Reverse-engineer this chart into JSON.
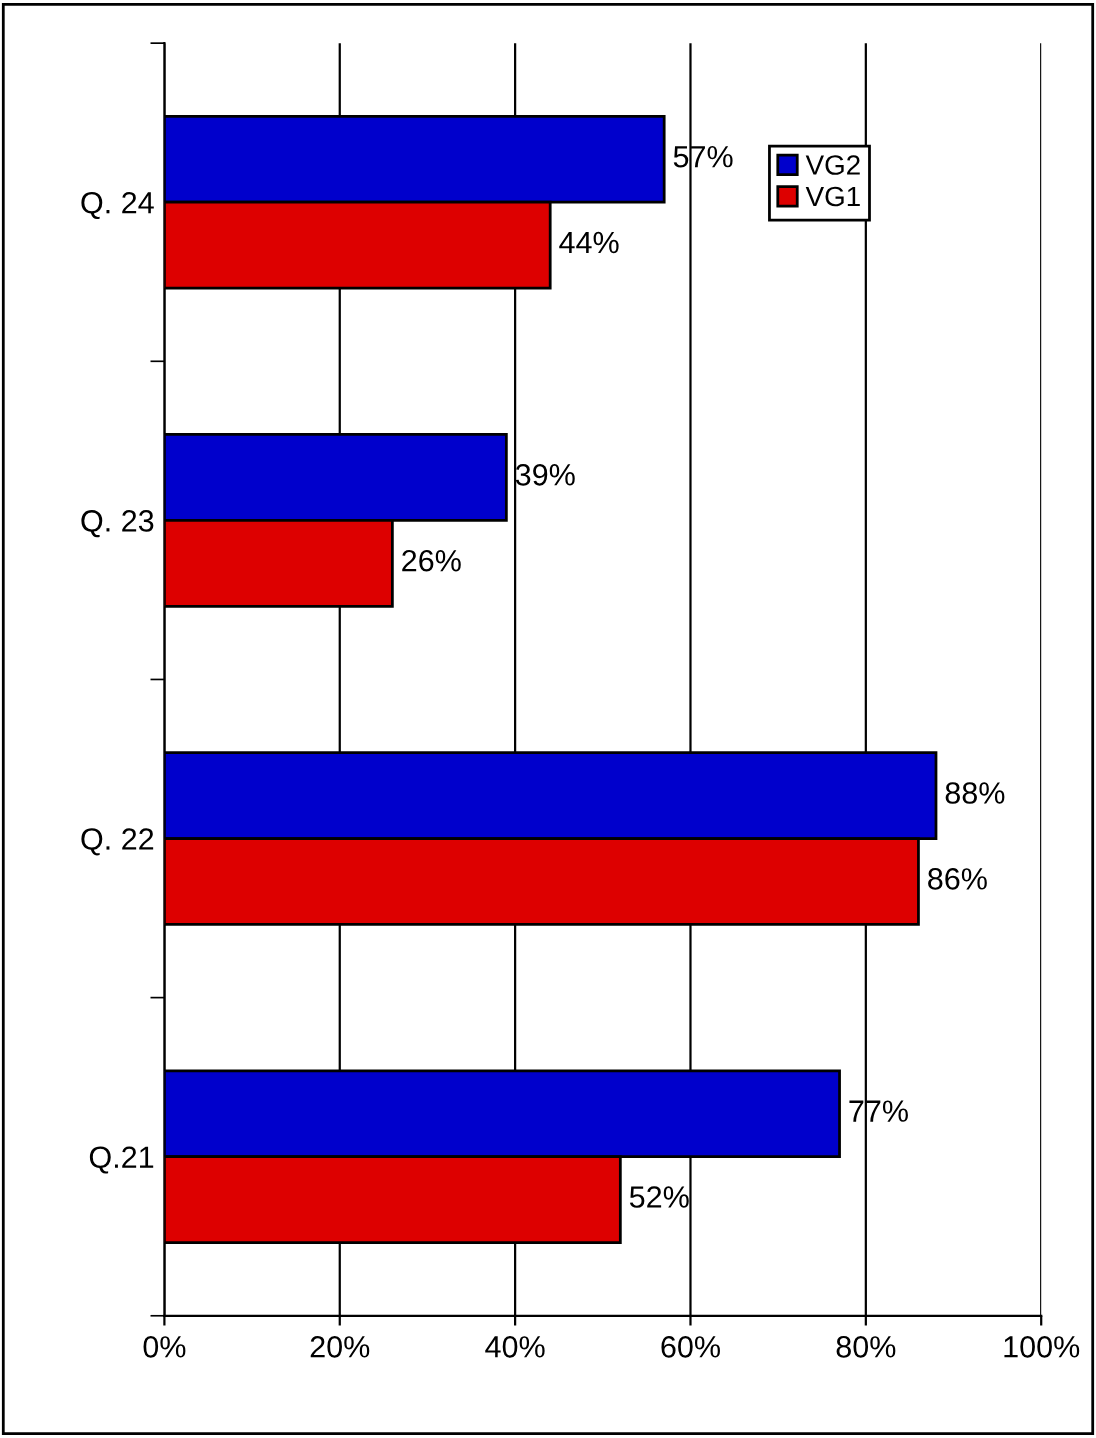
{
  "chart_data": {
    "type": "bar",
    "orientation": "horizontal",
    "categories": [
      "Q. 24",
      "Q. 23",
      "Q. 22",
      "Q.21"
    ],
    "series": [
      {
        "name": "VG2",
        "color": "#0000cc",
        "values": [
          57,
          39,
          88,
          77
        ],
        "value_labels": [
          "57%",
          "39%",
          "88%",
          "77%"
        ]
      },
      {
        "name": "VG1",
        "color": "#dd0000",
        "values": [
          44,
          26,
          86,
          52
        ],
        "value_labels": [
          "44%",
          "26%",
          "86%",
          "52%"
        ]
      }
    ],
    "xlim": [
      0,
      100
    ],
    "xticks": [
      {
        "value": 0,
        "label": "0%"
      },
      {
        "value": 20,
        "label": "20%"
      },
      {
        "value": 40,
        "label": "40%"
      },
      {
        "value": 60,
        "label": "60%"
      },
      {
        "value": 80,
        "label": "80%"
      },
      {
        "value": 100,
        "label": "100%"
      }
    ],
    "grid": "x",
    "legend": "top right"
  }
}
